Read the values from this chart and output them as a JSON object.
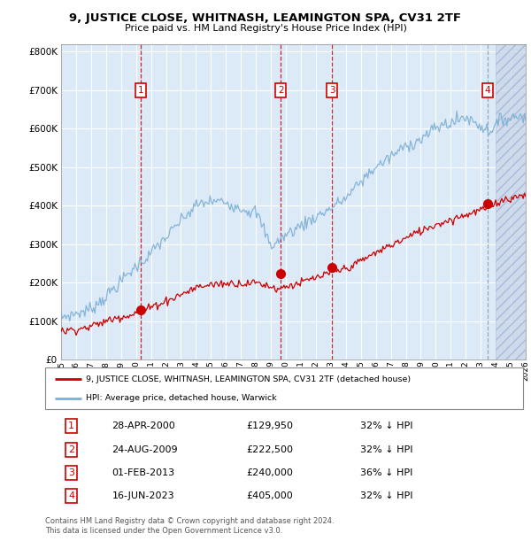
{
  "title": "9, JUSTICE CLOSE, WHITNASH, LEAMINGTON SPA, CV31 2TF",
  "subtitle": "Price paid vs. HM Land Registry's House Price Index (HPI)",
  "hpi_color": "#7bafd4",
  "price_color": "#cc0000",
  "background_color": "#dce9f7",
  "purchases": [
    {
      "date_num": 2000.32,
      "price": 129950,
      "label": "1",
      "date_str": "28-APR-2000",
      "pct": "32% ↓ HPI"
    },
    {
      "date_num": 2009.65,
      "price": 222500,
      "label": "2",
      "date_str": "24-AUG-2009",
      "pct": "32% ↓ HPI"
    },
    {
      "date_num": 2013.08,
      "price": 240000,
      "label": "3",
      "date_str": "01-FEB-2013",
      "pct": "36% ↓ HPI"
    },
    {
      "date_num": 2023.46,
      "price": 405000,
      "label": "4",
      "date_str": "16-JUN-2023",
      "pct": "32% ↓ HPI"
    }
  ],
  "xlim": [
    1995,
    2026
  ],
  "ylim": [
    0,
    820000
  ],
  "yticks": [
    0,
    100000,
    200000,
    300000,
    400000,
    500000,
    600000,
    700000,
    800000
  ],
  "ytick_labels": [
    "£0",
    "£100K",
    "£200K",
    "£300K",
    "£400K",
    "£500K",
    "£600K",
    "£700K",
    "£800K"
  ],
  "xticks": [
    1995,
    1996,
    1997,
    1998,
    1999,
    2000,
    2001,
    2002,
    2003,
    2004,
    2005,
    2006,
    2007,
    2008,
    2009,
    2010,
    2011,
    2012,
    2013,
    2014,
    2015,
    2016,
    2017,
    2018,
    2019,
    2020,
    2021,
    2022,
    2023,
    2024,
    2025,
    2026
  ],
  "legend_line1": "9, JUSTICE CLOSE, WHITNASH, LEAMINGTON SPA, CV31 2TF (detached house)",
  "legend_line2": "HPI: Average price, detached house, Warwick",
  "footer1": "Contains HM Land Registry data © Crown copyright and database right 2024.",
  "footer2": "This data is licensed under the Open Government Licence v3.0.",
  "table_rows": [
    [
      "1",
      "28-APR-2000",
      "£129,950",
      "32% ↓ HPI"
    ],
    [
      "2",
      "24-AUG-2009",
      "£222,500",
      "32% ↓ HPI"
    ],
    [
      "3",
      "01-FEB-2013",
      "£240,000",
      "36% ↓ HPI"
    ],
    [
      "4",
      "16-JUN-2023",
      "£405,000",
      "32% ↓ HPI"
    ]
  ]
}
